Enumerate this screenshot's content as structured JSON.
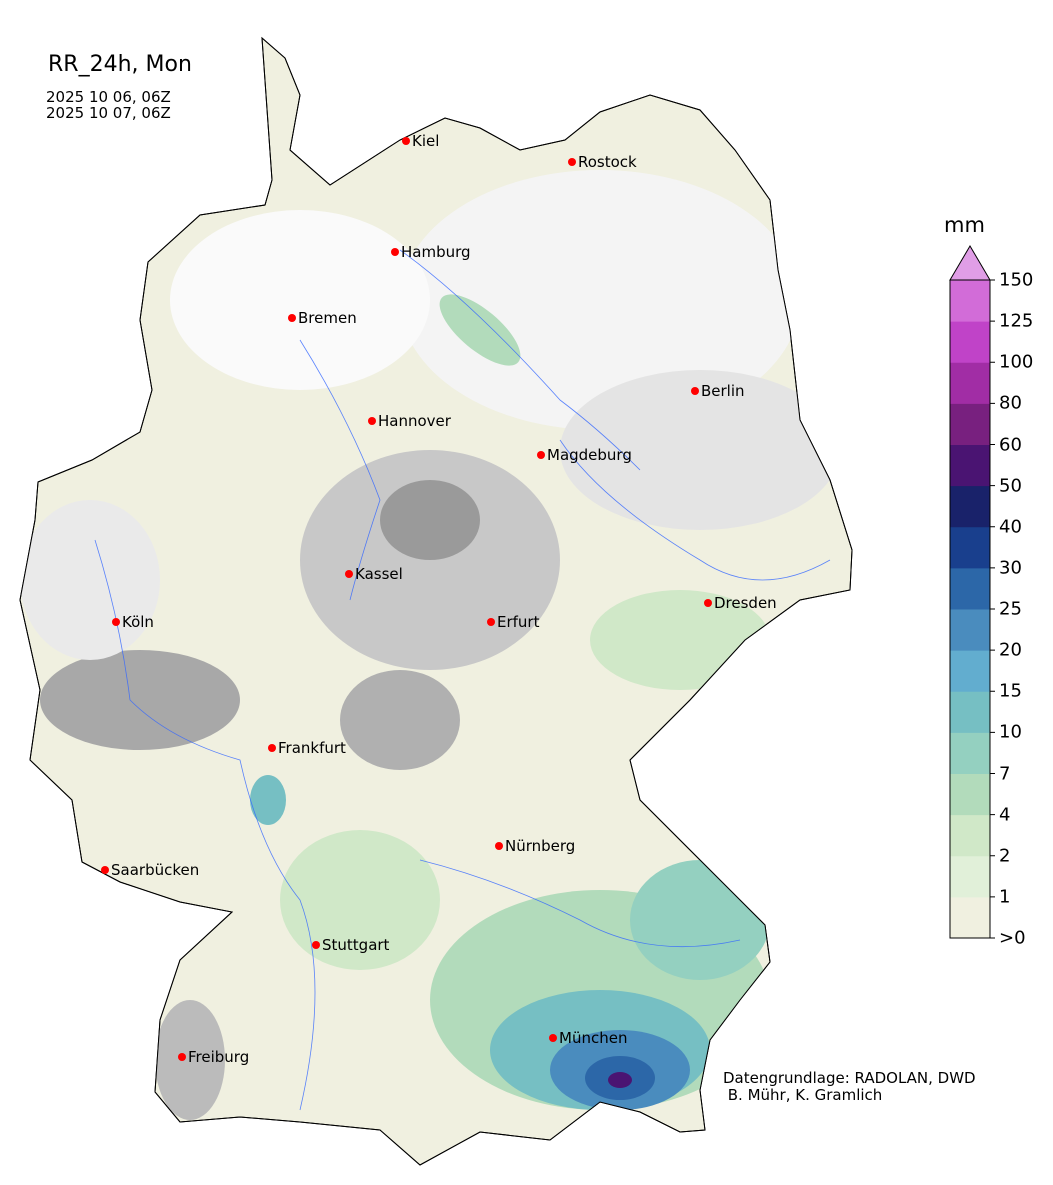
{
  "title": "RR_24h, Mon",
  "period": {
    "start": "2025 10 06, 06Z",
    "end": "2025 10 07, 06Z"
  },
  "credits": {
    "line1": "Datengrundlage: RADOLAN, DWD",
    "line2": " B. Mühr, K. Gramlich"
  },
  "colorbar": {
    "unit": "mm",
    "tick_labels": [
      ">0",
      "1",
      "2",
      "4",
      "7",
      "10",
      "15",
      "20",
      "25",
      "30",
      "40",
      "50",
      "60",
      "80",
      "100",
      "125",
      "150"
    ],
    "colors": [
      "#f0f0e0",
      "#e1f0d9",
      "#d0e8c8",
      "#b2dbbb",
      "#94d0c0",
      "#76bfc3",
      "#62adcf",
      "#4a8cbe",
      "#2c67a8",
      "#193f8d",
      "#19226a",
      "#4a1472",
      "#78207f",
      "#a12da5",
      "#c043c8",
      "#d26cd8"
    ],
    "extend_color": "#e09ee6"
  },
  "cities": [
    {
      "name": "Kiel"
    },
    {
      "name": "Rostock"
    },
    {
      "name": "Hamburg"
    },
    {
      "name": "Bremen"
    },
    {
      "name": "Berlin"
    },
    {
      "name": "Hannover"
    },
    {
      "name": "Magdeburg"
    },
    {
      "name": "Kassel"
    },
    {
      "name": "Köln"
    },
    {
      "name": "Erfurt"
    },
    {
      "name": "Dresden"
    },
    {
      "name": "Frankfurt"
    },
    {
      "name": "Nürnberg"
    },
    {
      "name": "Saarbücken"
    },
    {
      "name": "Stuttgart"
    },
    {
      "name": "München"
    },
    {
      "name": "Freiburg"
    }
  ],
  "city_marker_color": "#ff0000",
  "river_color": "#3366ff"
}
